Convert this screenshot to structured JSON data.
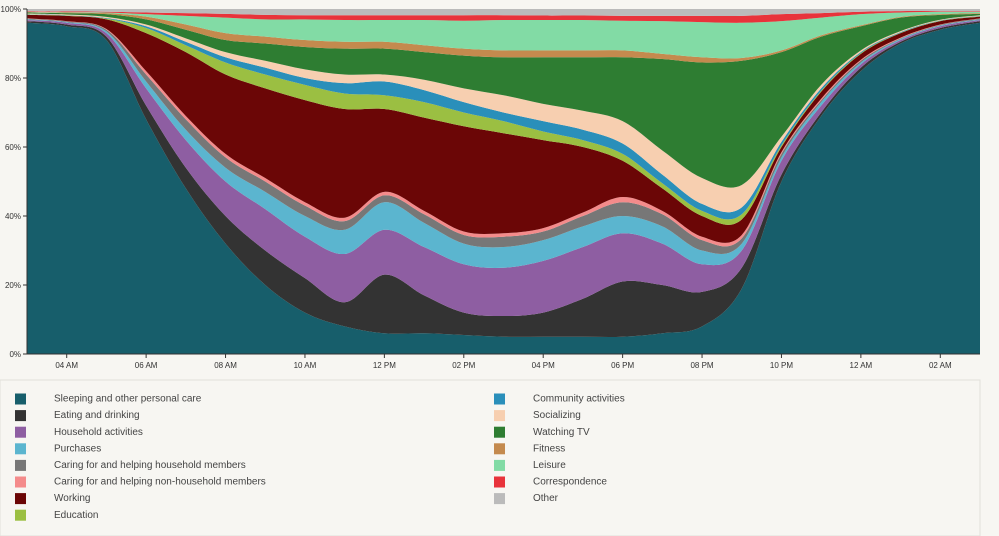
{
  "chart_data": {
    "type": "stacked-area",
    "x": [
      3,
      4,
      5,
      6,
      7,
      8,
      9,
      10,
      11,
      12,
      13,
      14,
      15,
      16,
      17,
      18,
      19,
      20,
      21,
      22,
      23,
      24,
      25,
      26,
      27
    ],
    "xlim": [
      3,
      27
    ],
    "xticks": [
      {
        "value": 4,
        "label": "04 AM"
      },
      {
        "value": 6,
        "label": "06 AM"
      },
      {
        "value": 8,
        "label": "08 AM"
      },
      {
        "value": 10,
        "label": "10 AM"
      },
      {
        "value": 12,
        "label": "12 PM"
      },
      {
        "value": 14,
        "label": "02 PM"
      },
      {
        "value": 16,
        "label": "04 PM"
      },
      {
        "value": 18,
        "label": "06 PM"
      },
      {
        "value": 20,
        "label": "08 PM"
      },
      {
        "value": 22,
        "label": "10 PM"
      },
      {
        "value": 24,
        "label": "12 AM"
      },
      {
        "value": 26,
        "label": "02 AM"
      }
    ],
    "ylim": [
      0,
      100
    ],
    "yticks": [
      {
        "value": 0,
        "label": "0%"
      },
      {
        "value": 20,
        "label": "20%"
      },
      {
        "value": 40,
        "label": "40%"
      },
      {
        "value": 60,
        "label": "60%"
      },
      {
        "value": 80,
        "label": "80%"
      },
      {
        "value": 100,
        "label": "100%"
      }
    ],
    "series": [
      {
        "name": "Sleeping and other personal care",
        "color": "#175e6b",
        "values": [
          96,
          95,
          91,
          68,
          48,
          32,
          20,
          12,
          8,
          6,
          6,
          5.5,
          5,
          5,
          5,
          5,
          6,
          8,
          19,
          50,
          69,
          82,
          90,
          94,
          96
        ]
      },
      {
        "name": "Eating and drinking",
        "color": "#333333",
        "values": [
          0.5,
          0.5,
          1,
          4,
          6,
          8,
          10,
          10,
          7,
          17,
          11,
          6.5,
          6,
          7,
          11,
          16,
          14,
          10,
          6,
          2,
          1,
          1,
          0.5,
          0.5,
          0.5
        ]
      },
      {
        "name": "Household activities",
        "color": "#8e5ea2",
        "values": [
          0.3,
          0.5,
          1,
          5,
          8,
          10,
          12,
          12,
          14,
          13,
          14,
          14,
          14,
          15,
          15,
          14,
          12,
          8,
          5,
          4,
          2,
          1,
          0.5,
          0.5,
          0.3
        ]
      },
      {
        "name": "Purchases",
        "color": "#5bb5cf",
        "values": [
          0.2,
          0.2,
          0.5,
          2,
          3,
          4,
          5,
          6,
          7,
          8,
          7,
          6,
          6,
          6,
          6,
          5,
          5,
          4,
          2,
          1,
          1,
          0.5,
          0.3,
          0.2,
          0.2
        ]
      },
      {
        "name": "Caring for and helping household members",
        "color": "#777777",
        "values": [
          0.2,
          0.2,
          0.5,
          2,
          3,
          3,
          3,
          3,
          2.5,
          2,
          2.5,
          2.5,
          3,
          2.5,
          3,
          4,
          3.5,
          3,
          1.5,
          1,
          0.5,
          0.5,
          0.2,
          0.2,
          0.2
        ]
      },
      {
        "name": "Caring for and helping non-household members",
        "color": "#f48b8b",
        "values": [
          0.1,
          0.1,
          0.2,
          1,
          1,
          1,
          1,
          1,
          1,
          1,
          1,
          1,
          1,
          1,
          1,
          1.5,
          1,
          1,
          1,
          0.5,
          0.5,
          0.3,
          0.2,
          0.1,
          0.1
        ]
      },
      {
        "name": "Working",
        "color": "#6b0606",
        "values": [
          1,
          1.5,
          2.8,
          11,
          18.5,
          23,
          26,
          29.6,
          31.5,
          24,
          27,
          30.5,
          29,
          25.5,
          19,
          10.5,
          6.5,
          6,
          4.5,
          1.5,
          2,
          1.7,
          1.3,
          1,
          0.5
        ]
      },
      {
        "name": "Education",
        "color": "#9bbf42",
        "values": [
          0.1,
          0.1,
          0.2,
          1.5,
          2,
          3.5,
          4,
          4.4,
          4.5,
          4,
          4.5,
          4,
          3.5,
          2.5,
          2,
          2,
          1.5,
          1.5,
          1.5,
          0.5,
          0.3,
          0.2,
          0.1,
          0.1,
          0.1
        ]
      },
      {
        "name": "Community activities",
        "color": "#2a8fba",
        "values": [
          0.1,
          0.1,
          0.2,
          0.5,
          1,
          1.5,
          2,
          2,
          3,
          4,
          3.5,
          3,
          2.5,
          3,
          3,
          3,
          2.5,
          2,
          2,
          1,
          0.7,
          0.3,
          0.2,
          0.1,
          0.1
        ]
      },
      {
        "name": "Socializing",
        "color": "#f7cfb0",
        "values": [
          0.2,
          0.2,
          0.3,
          0.5,
          1,
          1.5,
          2,
          2.5,
          2.5,
          2,
          3,
          4,
          5,
          5,
          5.5,
          6.5,
          7,
          7.5,
          6.5,
          1.5,
          1,
          0.5,
          0.3,
          0.2,
          0.2
        ]
      },
      {
        "name": "Watching TV",
        "color": "#2e7d32",
        "values": [
          0.3,
          0.4,
          0.8,
          1.5,
          2.5,
          3.5,
          5,
          6.5,
          7.5,
          7.5,
          8,
          9.5,
          11,
          13.5,
          15.5,
          18.5,
          26.5,
          33.5,
          36,
          24.5,
          14,
          7,
          3.9,
          1.4,
          0.4
        ]
      },
      {
        "name": "Fitness",
        "color": "#c48a4e",
        "values": [
          0.1,
          0.2,
          0.3,
          0.8,
          1.5,
          2,
          2,
          2,
          2,
          2,
          2,
          2,
          2,
          2,
          2,
          2,
          1.5,
          1.5,
          0.8,
          0.5,
          0.4,
          0.3,
          0.2,
          0.2,
          0.2
        ]
      },
      {
        "name": "Leisure",
        "color": "#82dba5",
        "values": [
          0.1,
          0.1,
          0.2,
          0.7,
          2.5,
          4.5,
          5,
          6,
          6.3,
          6.3,
          7.3,
          8.1,
          8.8,
          8.8,
          8.8,
          8.6,
          9.5,
          10.2,
          10.2,
          8.5,
          5.1,
          3.2,
          1.3,
          0.7,
          0.4
        ]
      },
      {
        "name": "Correspondence",
        "color": "#e8333b",
        "values": [
          0.2,
          0.2,
          0.2,
          0.5,
          0.8,
          1.1,
          1.3,
          1.2,
          1.4,
          1.4,
          1.4,
          1.6,
          1.4,
          1.3,
          1.3,
          1.4,
          1.5,
          1.8,
          2,
          2,
          1.3,
          0.7,
          0.4,
          0.2,
          0.2
        ]
      },
      {
        "name": "Other",
        "color": "#bbbbbb",
        "values": [
          0.6,
          0.7,
          0.8,
          1,
          1.2,
          1.4,
          1.7,
          1.8,
          1.8,
          1.8,
          1.8,
          1.8,
          1.8,
          1.9,
          1.9,
          2,
          2,
          2,
          2,
          1.5,
          1.2,
          0.8,
          0.6,
          0.6,
          0.6
        ]
      }
    ]
  }
}
